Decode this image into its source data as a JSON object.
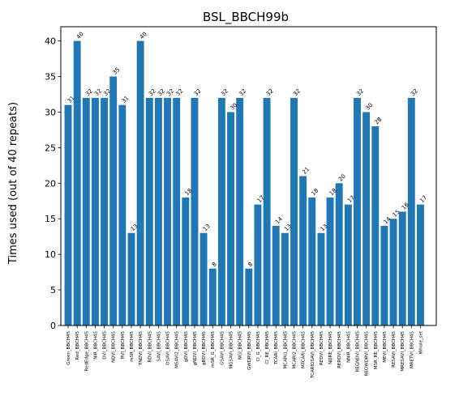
{
  "chart_data": {
    "type": "bar",
    "title": "BSL_BBCH99b",
    "xlabel": "",
    "ylabel": "Times used (out of 40 repeats)",
    "ylim": [
      0,
      42
    ],
    "yticks": [
      0,
      5,
      10,
      15,
      20,
      25,
      30,
      35,
      40
    ],
    "grid": false,
    "bar_color": "#1f77b4",
    "categories": [
      "Green_BBCH45",
      "Red_BBCH45",
      "RedEdge_BBCH45",
      "NIR_BBCH45",
      "DVI_BBCH45",
      "NDVI_BBCH45",
      "RVI_BBCH45",
      "mSR_BBCH45",
      "TNDVI_BBCH45",
      "RDVI_BBCH45",
      "SAVI_BBCH45",
      "OSAVI_BBCH45",
      "MSAVI2_BBCH45",
      "gDVI_BBCH45",
      "gNDVI_BBCH45",
      "gRDVI_BBCH45",
      "mSR_G_BBCH45",
      "GSAVI_BBCH45",
      "MGSAVI_BBCH45",
      "NGI_BBCH45",
      "GWDRVI_BBCH45",
      "CI_G_BBCH45",
      "CI_RE_BBCH45",
      "TCARI_BBCH45",
      "MCARI1_BBCH45",
      "MCARI2_BBCH45",
      "MTCARI_BBCH45",
      "TCARIOSAVI_BBCH45",
      "REDVI_BBCH45",
      "NDRE_BBCH45",
      "REROVI_BBCH45",
      "NNIR_BBCH45",
      "REGNDVI_BBCH45",
      "REOWDRVI_BBCH45",
      "MSR_RE_BBCH45",
      "MEVI_BBCH45",
      "RESAVI_BBCH45",
      "MRESAVI_BBCH45",
      "MRETVI_BBCH45",
      "Whole_set"
    ],
    "values": [
      31,
      40,
      32,
      32,
      32,
      35,
      31,
      13,
      40,
      32,
      32,
      32,
      32,
      18,
      32,
      13,
      8,
      32,
      30,
      32,
      8,
      17,
      32,
      14,
      13,
      32,
      21,
      18,
      13,
      18,
      20,
      17,
      32,
      30,
      28,
      14,
      15,
      16,
      32,
      17
    ],
    "data_labels": [
      "31",
      "40",
      "32",
      "32",
      "32",
      "35",
      "31",
      "13",
      "40",
      "32",
      "32",
      "32",
      "32",
      "18",
      "32",
      "13",
      "8",
      "32",
      "30",
      "32",
      "8",
      "17",
      "32",
      "14",
      "13",
      "32",
      "21",
      "18",
      "13",
      "18",
      "20",
      "17",
      "32",
      "30",
      "28",
      "14",
      "15",
      "16",
      "32",
      "17"
    ]
  }
}
